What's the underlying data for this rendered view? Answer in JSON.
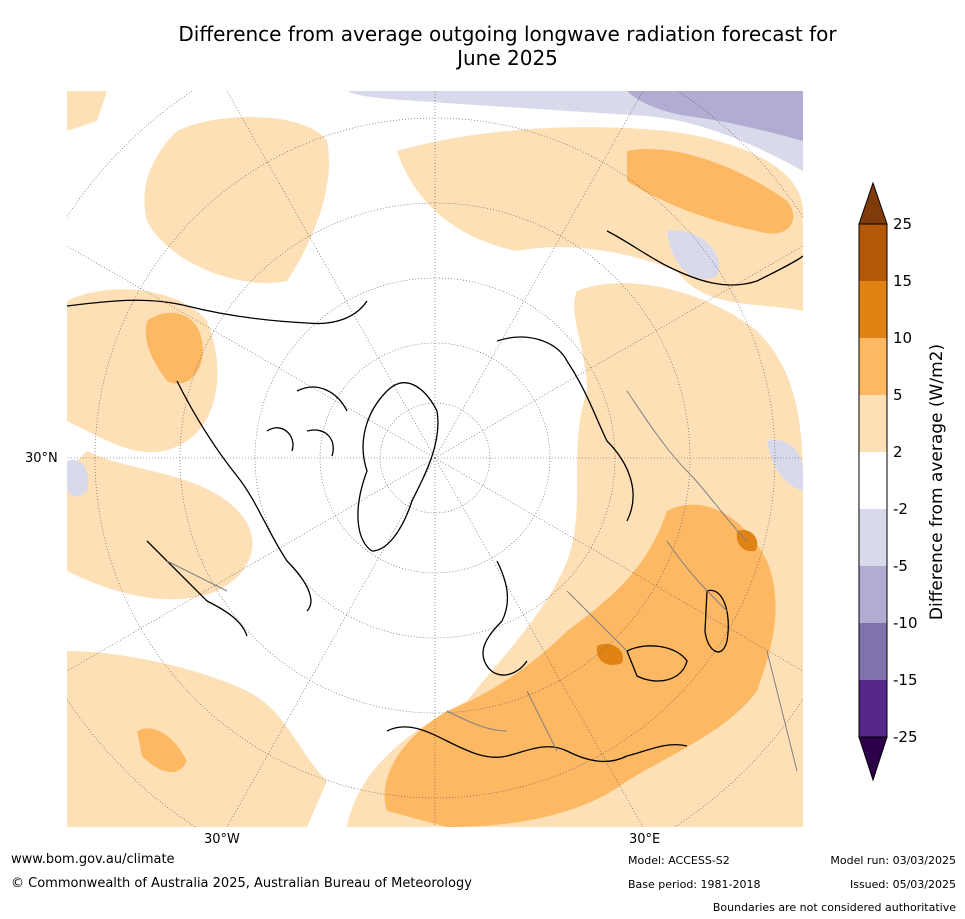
{
  "title_line1": "Difference from average outgoing longwave radiation forecast for",
  "title_line2": "June 2025",
  "map": {
    "lon_labels": [
      "30°W",
      "30°E"
    ],
    "lat_labels": [
      "30°N"
    ]
  },
  "colorbar": {
    "title": "Difference from average (W/m2)",
    "ticks": [
      "25",
      "15",
      "10",
      "5",
      "2",
      "-2",
      "-5",
      "-10",
      "-15",
      "-25"
    ],
    "colors": {
      "over": "#7f3b08",
      "b15_25": "#b35806",
      "b10_15": "#e08214",
      "b5_10": "#fdb863",
      "b2_5": "#fee0b6",
      "neutral": "#ffffff",
      "bm5_m2": "#d8daeb",
      "bm10_m5": "#b2abd2",
      "bm15_m10": "#8073ac",
      "bm25_m15": "#542788",
      "under": "#2d004b"
    }
  },
  "footer": {
    "website": "www.bom.gov.au/climate",
    "copyright": "© Commonwealth of Australia 2025, Australian Bureau of Meteorology",
    "model": "Model: ACCESS-S2",
    "base_period": "Base period: 1981-2018",
    "model_run": "Model run: 03/03/2025",
    "issued": "Issued: 05/03/2025",
    "disclaimer": "Boundaries are not considered authoritative"
  }
}
